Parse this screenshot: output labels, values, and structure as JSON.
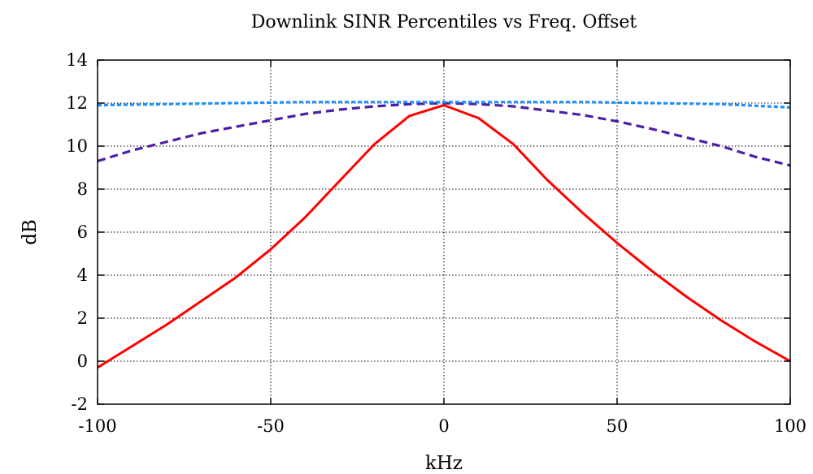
{
  "chart_data": {
    "type": "line",
    "title": "Downlink SINR Percentiles vs Freq. Offset",
    "xlabel": "kHz",
    "ylabel": "dB",
    "xlim": [
      -100,
      100
    ],
    "ylim": [
      -2,
      14
    ],
    "xticks": [
      -100,
      -50,
      0,
      50,
      100
    ],
    "yticks": [
      -2,
      0,
      2,
      4,
      6,
      8,
      10,
      12,
      14
    ],
    "grid": true,
    "legend": "none",
    "series": [
      {
        "color": "#ff0000",
        "style": "solid",
        "x": [
          -100,
          -90,
          -80,
          -70,
          -60,
          -50,
          -40,
          -30,
          -20,
          -10,
          0,
          10,
          20,
          30,
          40,
          50,
          60,
          70,
          80,
          90,
          100
        ],
        "y": [
          -0.3,
          0.7,
          1.7,
          2.8,
          3.9,
          5.2,
          6.7,
          8.4,
          10.1,
          11.4,
          11.9,
          11.3,
          10.1,
          8.4,
          6.9,
          5.5,
          4.2,
          3.0,
          1.9,
          0.9,
          0.0
        ]
      },
      {
        "color": "#4b1fa6",
        "style": "dashed",
        "x": [
          -100,
          -90,
          -80,
          -70,
          -60,
          -50,
          -40,
          -30,
          -20,
          -10,
          0,
          10,
          20,
          30,
          40,
          50,
          60,
          70,
          80,
          90,
          100
        ],
        "y": [
          9.3,
          9.8,
          10.2,
          10.6,
          10.9,
          11.2,
          11.5,
          11.7,
          11.85,
          11.95,
          12.0,
          11.95,
          11.85,
          11.65,
          11.45,
          11.15,
          10.8,
          10.4,
          10.0,
          9.5,
          9.1
        ]
      },
      {
        "color": "#1e90ff",
        "style": "dotted",
        "x": [
          -100,
          -80,
          -60,
          -40,
          -20,
          0,
          20,
          40,
          60,
          80,
          100
        ],
        "y": [
          11.9,
          11.95,
          12.0,
          12.05,
          12.05,
          12.05,
          12.05,
          12.05,
          12.0,
          11.95,
          11.8
        ]
      }
    ]
  }
}
